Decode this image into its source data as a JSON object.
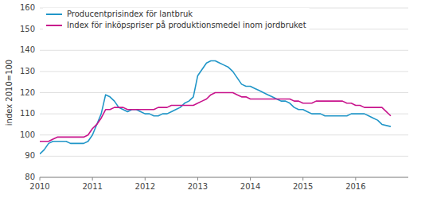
{
  "chart_data": {
    "type": "line",
    "ylabel": "index 2010=100",
    "x": [
      2010.0,
      2010.083,
      2010.167,
      2010.25,
      2010.333,
      2010.417,
      2010.5,
      2010.583,
      2010.667,
      2010.75,
      2010.833,
      2010.917,
      2011.0,
      2011.083,
      2011.167,
      2011.25,
      2011.333,
      2011.417,
      2011.5,
      2011.583,
      2011.667,
      2011.75,
      2011.833,
      2011.917,
      2012.0,
      2012.083,
      2012.167,
      2012.25,
      2012.333,
      2012.417,
      2012.5,
      2012.583,
      2012.667,
      2012.75,
      2012.833,
      2012.917,
      2013.0,
      2013.083,
      2013.167,
      2013.25,
      2013.333,
      2013.417,
      2013.5,
      2013.583,
      2013.667,
      2013.75,
      2013.833,
      2013.917,
      2014.0,
      2014.083,
      2014.167,
      2014.25,
      2014.333,
      2014.417,
      2014.5,
      2014.583,
      2014.667,
      2014.75,
      2014.833,
      2014.917,
      2015.0,
      2015.083,
      2015.167,
      2015.25,
      2015.333,
      2015.417,
      2015.5,
      2015.583,
      2015.667,
      2015.75,
      2015.833,
      2015.917,
      2016.0,
      2016.083,
      2016.167,
      2016.25,
      2016.333,
      2016.417,
      2016.5,
      2016.667
    ],
    "series": [
      {
        "name": "Producentprisindex för lantbruk",
        "color": "#2196c8",
        "values": [
          91,
          93,
          96,
          97,
          97,
          97,
          97,
          96,
          96,
          96,
          96,
          97,
          100,
          105,
          110,
          119,
          118,
          116,
          113,
          112,
          111,
          112,
          112,
          111,
          110,
          110,
          109,
          109,
          110,
          110,
          111,
          112,
          113,
          115,
          116,
          118,
          128,
          131,
          134,
          135,
          135,
          134,
          133,
          132,
          130,
          127,
          124,
          123,
          123,
          122,
          121,
          120,
          119,
          118,
          117,
          116,
          116,
          115,
          113,
          112,
          112,
          111,
          110,
          110,
          110,
          109,
          109,
          109,
          109,
          109,
          109,
          110,
          110,
          110,
          110,
          109,
          108,
          107,
          105,
          104
        ]
      },
      {
        "name": "Index för inköpspriser på produktionsmedel inom jordbruket",
        "color": "#c8148c",
        "values": [
          97,
          97,
          97,
          98,
          99,
          99,
          99,
          99,
          99,
          99,
          99,
          100,
          103,
          105,
          108,
          112,
          112,
          113,
          113,
          113,
          112,
          112,
          112,
          112,
          112,
          112,
          112,
          113,
          113,
          113,
          114,
          114,
          114,
          114,
          114,
          114,
          115,
          116,
          117,
          119,
          120,
          120,
          120,
          120,
          120,
          119,
          118,
          118,
          117,
          117,
          117,
          117,
          117,
          117,
          117,
          117,
          117,
          117,
          116,
          116,
          115,
          115,
          115,
          116,
          116,
          116,
          116,
          116,
          116,
          116,
          115,
          115,
          114,
          114,
          113,
          113,
          113,
          113,
          113,
          109
        ]
      }
    ],
    "xlim": [
      2010.0,
      2017.0
    ],
    "xticks": [
      2010,
      2011,
      2012,
      2013,
      2014,
      2015,
      2016
    ],
    "ylim": [
      80,
      160
    ],
    "yticks": [
      80,
      90,
      100,
      110,
      120,
      130,
      140,
      150,
      160
    ],
    "grid": true,
    "legend": "upper left"
  }
}
